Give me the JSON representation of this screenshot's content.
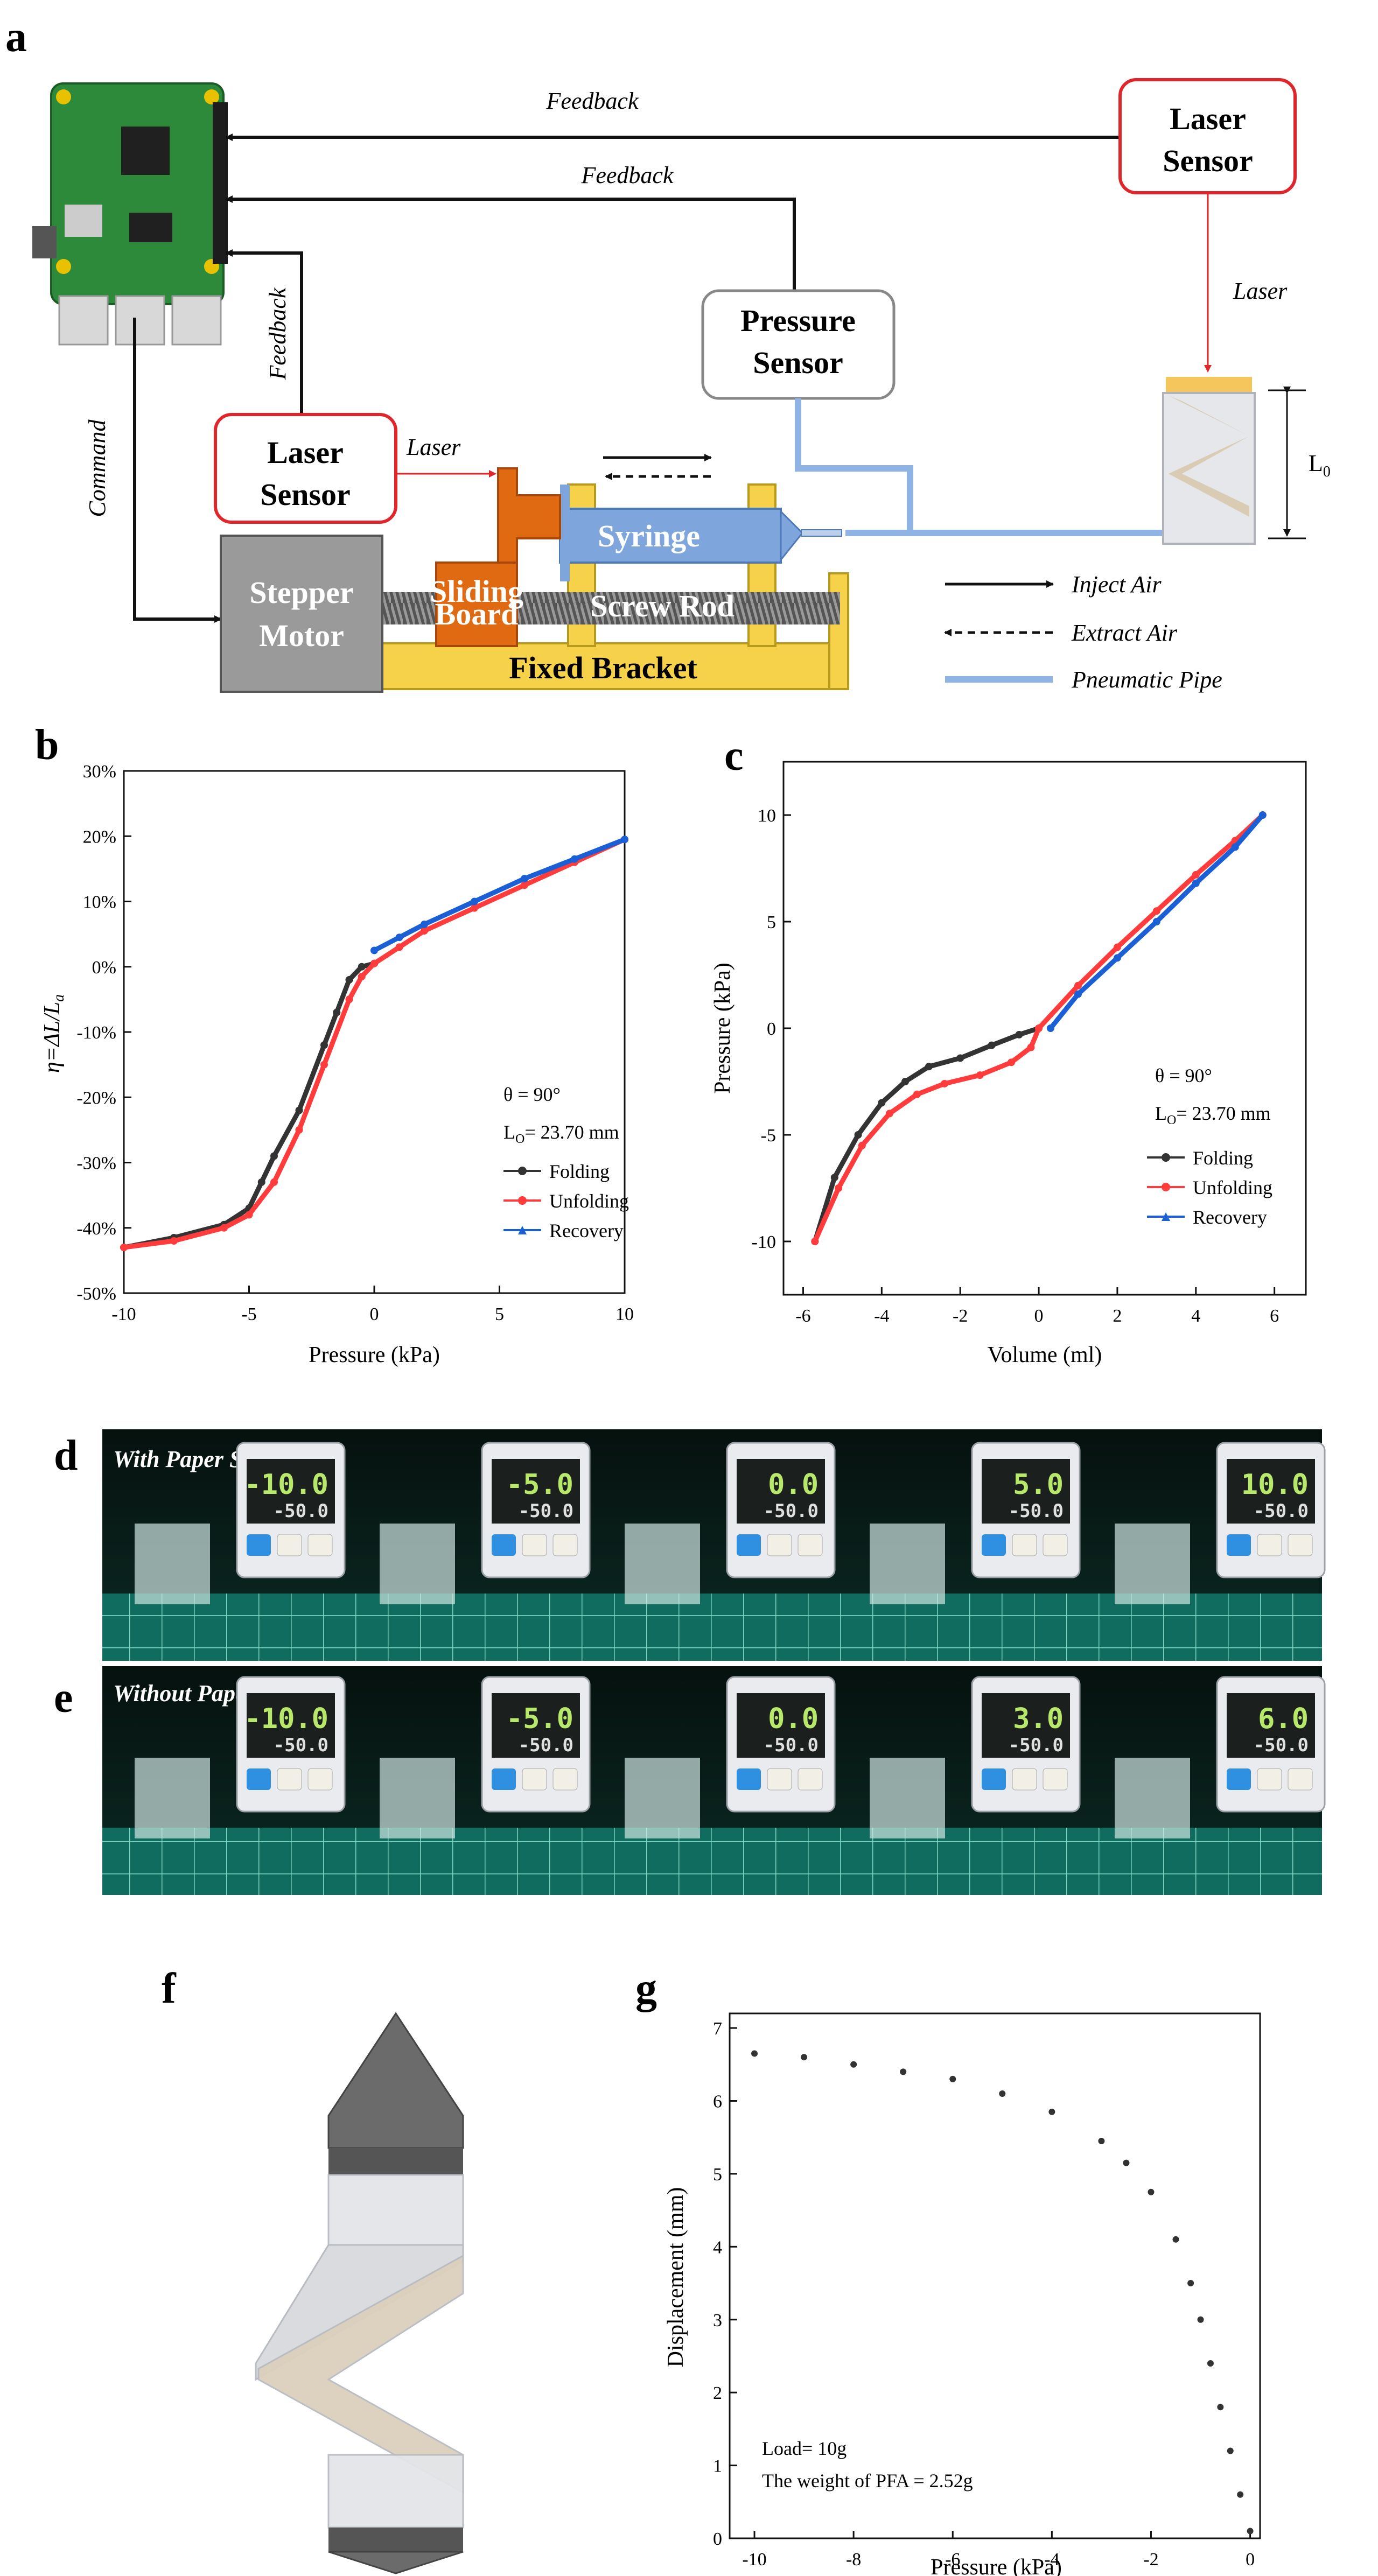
{
  "panels": {
    "a": "a",
    "b": "b",
    "c": "c",
    "d": "d",
    "e": "e",
    "f": "f",
    "g": "g"
  },
  "schematic": {
    "feedback_top": "Feedback",
    "feedback_mid": "Feedback",
    "feedback_left": "Feedback",
    "command": "Command",
    "laser_sensor_right_line1": "Laser",
    "laser_sensor_right_line2": "Sensor",
    "laser_right": "Laser",
    "pressure_sensor_line1": "Pressure",
    "pressure_sensor_line2": "Sensor",
    "laser_sensor_left_line1": "Laser",
    "laser_sensor_left_line2": "Sensor",
    "laser_left": "Laser",
    "syringe": "Syringe",
    "stepper_line1": "Stepper",
    "stepper_line2": "Motor",
    "sliding_line1": "Sliding",
    "sliding_line2": "Board",
    "screw_rod": "Screw Rod",
    "fixed_bracket": "Fixed Bracket",
    "l0": "L",
    "l0_sub": "0",
    "legend_inject": "Inject Air",
    "legend_extract": "Extract Air",
    "legend_pipe": "Pneumatic Pipe"
  },
  "photos": {
    "d_caption": "With Paper Skeleton",
    "e_caption": "Without Paper Skeleton",
    "d_readings": [
      "-10.0",
      "-5.0",
      "0.0",
      "5.0",
      "10.0"
    ],
    "e_readings": [
      "-10.0",
      "-5.0",
      "0.0",
      "3.0",
      "6.0"
    ],
    "setpoint": "-50.0"
  },
  "colors": {
    "folding": "#333333",
    "unfolding": "#ff3b3b",
    "recovery": "#1a5fd6",
    "pipe": "#8fb4e3",
    "sensor_border": "#e0262a",
    "bracket": "#f6d24a",
    "sliding": "#e06a12",
    "syringe": "#7fa6dc",
    "motor": "#9a9a9a"
  },
  "chart_data": [
    {
      "type": "line",
      "panel": "b",
      "ylabel": "η=ΔL/L",
      "ylabel_sub": "a",
      "xlabel": "Pressure (kPa)",
      "xlim": [
        -10,
        10
      ],
      "ylim": [
        -50,
        30
      ],
      "xticks": [
        -10,
        -5,
        0,
        5,
        10
      ],
      "yticks": [
        -50,
        -40,
        -30,
        -20,
        -10,
        0,
        10,
        20,
        30
      ],
      "yticks_labels": [
        "-50%",
        "-40%",
        "-30%",
        "-20%",
        "-10%",
        "0%",
        "10%",
        "20%",
        "30%"
      ],
      "annotations": [
        "θ = 90°",
        "L",
        "O",
        "= 23.70 mm"
      ],
      "legend": [
        "Folding",
        "Unfolding",
        "Recovery"
      ],
      "series": [
        {
          "name": "Folding",
          "x": [
            -10,
            -8,
            -6,
            -5,
            -4.5,
            -4,
            -3,
            -2,
            -1.5,
            -1,
            -0.5,
            0
          ],
          "y": [
            -43,
            -41.5,
            -39.5,
            -37,
            -33,
            -29,
            -22,
            -12,
            -7,
            -2,
            0,
            0.5
          ]
        },
        {
          "name": "Unfolding",
          "x": [
            -10,
            -8,
            -6,
            -5,
            -4,
            -3,
            -2,
            -1,
            -0.5,
            0,
            1,
            2,
            4,
            6,
            8,
            10
          ],
          "y": [
            -43,
            -42,
            -40,
            -38,
            -33,
            -25,
            -15,
            -5,
            -1.5,
            0.5,
            3,
            5.5,
            9,
            12.5,
            16,
            19.5
          ]
        },
        {
          "name": "Recovery",
          "x": [
            0,
            1,
            2,
            4,
            6,
            8,
            10
          ],
          "y": [
            2.5,
            4.5,
            6.5,
            10,
            13.5,
            16.5,
            19.5
          ]
        }
      ]
    },
    {
      "type": "line",
      "panel": "c",
      "ylabel": "Pressure (kPa)",
      "xlabel": "Volume (ml)",
      "xlim": [
        -6.5,
        6.8
      ],
      "ylim": [
        -12.5,
        12.5
      ],
      "xticks": [
        -6,
        -4,
        -2,
        0,
        2,
        4,
        6
      ],
      "yticks": [
        -10,
        -5,
        0,
        5,
        10
      ],
      "annotations": [
        "θ = 90°",
        "L",
        "O",
        "= 23.70 mm"
      ],
      "legend": [
        "Folding",
        "Unfolding",
        "Recovery"
      ],
      "series": [
        {
          "name": "Folding",
          "x": [
            -5.7,
            -5.2,
            -4.6,
            -4,
            -3.4,
            -2.8,
            -2,
            -1.2,
            -0.5,
            0
          ],
          "y": [
            -10,
            -7,
            -5,
            -3.5,
            -2.5,
            -1.8,
            -1.4,
            -0.8,
            -0.3,
            0
          ]
        },
        {
          "name": "Unfolding",
          "x": [
            -5.7,
            -5.1,
            -4.5,
            -3.8,
            -3.1,
            -2.4,
            -1.5,
            -0.7,
            -0.2,
            0,
            1,
            2,
            3,
            4,
            5,
            5.7
          ],
          "y": [
            -10,
            -7.5,
            -5.5,
            -4,
            -3.1,
            -2.6,
            -2.2,
            -1.6,
            -0.9,
            0,
            2,
            3.8,
            5.5,
            7.2,
            8.8,
            10
          ]
        },
        {
          "name": "Recovery",
          "x": [
            0.3,
            1,
            2,
            3,
            4,
            5,
            5.7
          ],
          "y": [
            0,
            1.6,
            3.3,
            5,
            6.8,
            8.5,
            10
          ]
        }
      ]
    },
    {
      "type": "scatter",
      "panel": "g",
      "ylabel": "Displacement (mm)",
      "xlabel": "Pressure (kPa)",
      "xlim": [
        -10.5,
        0.2
      ],
      "ylim": [
        0,
        7.2
      ],
      "xticks": [
        -10,
        -8,
        -6,
        -4,
        -2,
        0
      ],
      "yticks": [
        0,
        1,
        2,
        3,
        4,
        5,
        6,
        7
      ],
      "annotations": [
        "Load= 10g",
        "The weight of PFA = 2.52g"
      ],
      "series": [
        {
          "name": "Displacement",
          "x": [
            -10,
            -9,
            -8,
            -7,
            -6,
            -5,
            -4,
            -3,
            -2.5,
            -2,
            -1.5,
            -1.2,
            -1,
            -0.8,
            -0.6,
            -0.4,
            -0.2,
            0
          ],
          "y": [
            6.65,
            6.6,
            6.5,
            6.4,
            6.3,
            6.1,
            5.85,
            5.45,
            5.15,
            4.75,
            4.1,
            3.5,
            3.0,
            2.4,
            1.8,
            1.2,
            0.6,
            0.1
          ]
        }
      ]
    }
  ]
}
